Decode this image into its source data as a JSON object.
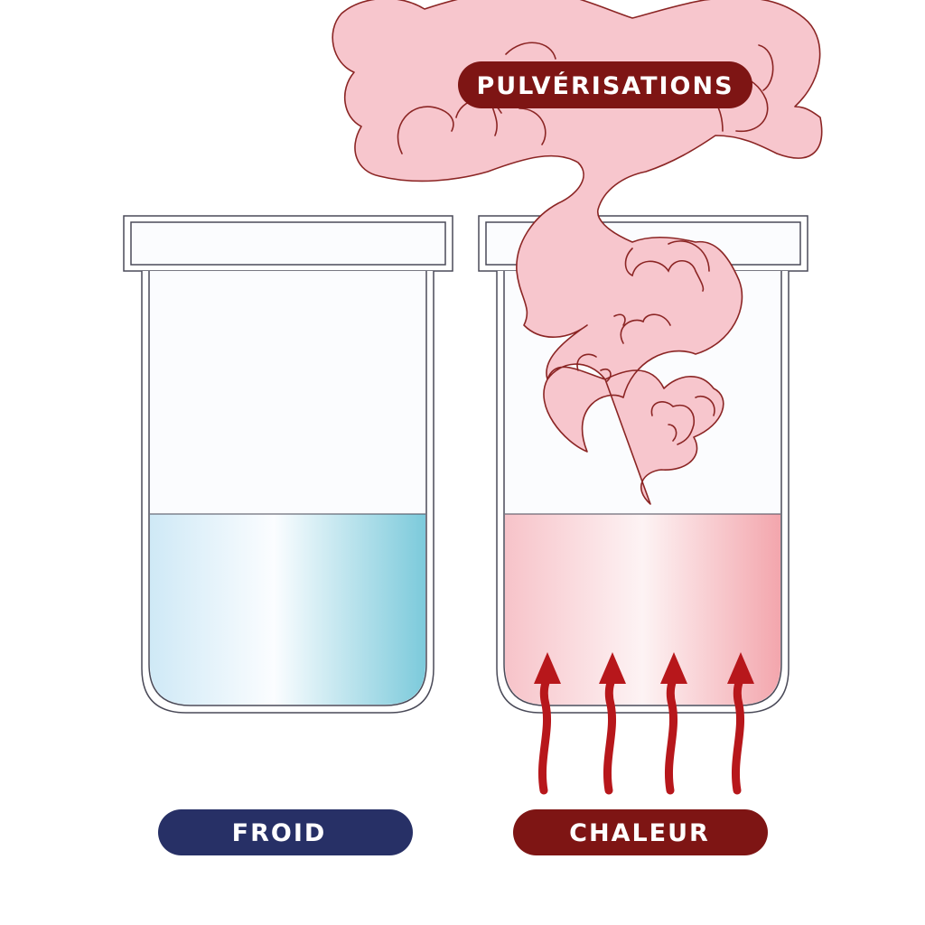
{
  "labels": {
    "spray": "PULVÉRISATIONS",
    "cold": "FROID",
    "heat": "CHALEUR"
  },
  "colors": {
    "cold_pill": "#273066",
    "heat_pill": "#7e1514",
    "spray_fill": "#f7c6cd",
    "spray_stroke": "#8b2524",
    "arrow": "#b7171b",
    "cold_liquid_light": "#eef7fd",
    "cold_liquid_dark": "#7ccadb",
    "hot_liquid_light": "#fdf0f2",
    "hot_liquid_dark": "#f4a8af",
    "beaker_outline": "#4a4a58",
    "beaker_fill": "#fbfcfe"
  },
  "icons": {
    "heat_arrows": "heat-arrow-icon",
    "spray_cloud": "spray-cloud-icon"
  }
}
